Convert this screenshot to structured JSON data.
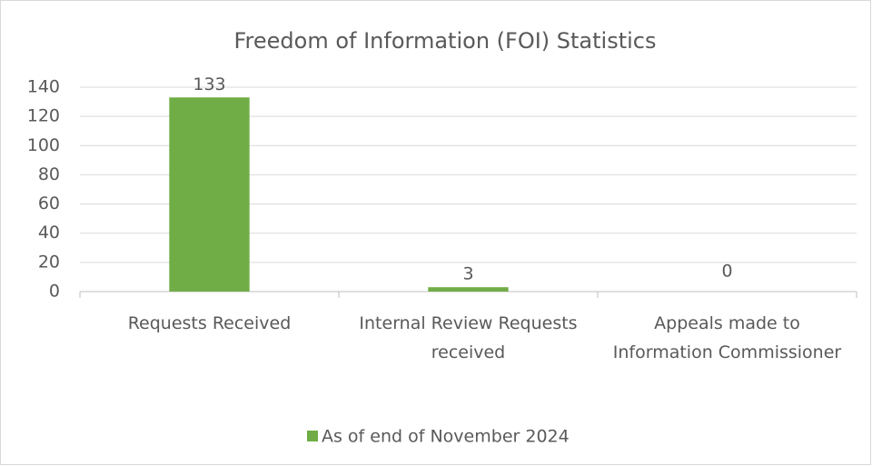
{
  "chart_data": {
    "type": "bar",
    "title": "Freedom of Information (FOI) Statistics",
    "categories": [
      "Requests Received",
      "Internal Review Requests received",
      "Appeals made to Information Commissioner"
    ],
    "series": [
      {
        "name": "As of end of November 2024",
        "color": "#70ad47",
        "values": [
          133,
          3,
          0
        ]
      }
    ],
    "ylim": [
      0,
      140
    ],
    "yticks": [
      0,
      20,
      40,
      60,
      80,
      100,
      120,
      140
    ],
    "grid": true,
    "legend": "bottom"
  }
}
